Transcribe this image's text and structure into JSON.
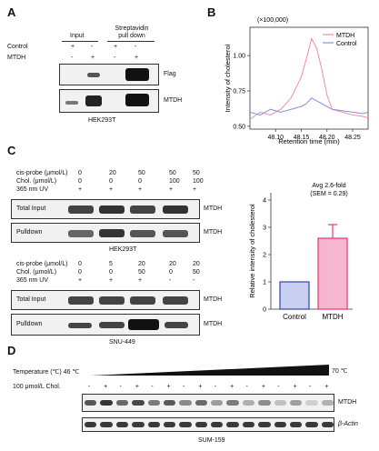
{
  "panels": {
    "A": "A",
    "B": "B",
    "C": "C",
    "D": "D"
  },
  "panelA": {
    "col_headers": {
      "input": "Input",
      "pulldown": "Streptavidin\npull down"
    },
    "row_labels": {
      "control": "Control",
      "mtdh": "MTDH"
    },
    "control_signs": [
      "+",
      "-",
      "+",
      "-"
    ],
    "mtdh_signs": [
      "-",
      "+",
      "-",
      "+"
    ],
    "blot_labels": {
      "top": "Flag",
      "bottom": "MTDH"
    },
    "cell_line": "HEK293T"
  },
  "panelB": {
    "multiplier": "(×100,000)",
    "legend": {
      "mtdh": "MTDH",
      "control": "Control"
    },
    "colors": {
      "mtdh": "#f08bb0",
      "control": "#8b8fd6"
    },
    "chart_data": {
      "type": "line",
      "xlabel": "Retention time (min)",
      "ylabel": "Intensity of cholesterol",
      "xlim": [
        48.05,
        48.28
      ],
      "ylim": [
        0.48,
        1.2
      ],
      "xticks": [
        "48.10",
        "48.15",
        "48.20",
        "48.25"
      ],
      "yticks": [
        "0.50",
        "0.75",
        "1.00"
      ],
      "series": [
        {
          "name": "MTDH",
          "x": [
            48.05,
            48.07,
            48.09,
            48.11,
            48.13,
            48.15,
            48.16,
            48.17,
            48.18,
            48.19,
            48.2,
            48.21,
            48.23,
            48.25,
            48.27,
            48.28
          ],
          "y": [
            0.55,
            0.6,
            0.58,
            0.62,
            0.7,
            0.85,
            0.98,
            1.12,
            1.05,
            0.9,
            0.72,
            0.62,
            0.6,
            0.58,
            0.57,
            0.56
          ]
        },
        {
          "name": "Control",
          "x": [
            48.05,
            48.07,
            48.09,
            48.11,
            48.13,
            48.15,
            48.16,
            48.17,
            48.18,
            48.19,
            48.2,
            48.21,
            48.23,
            48.25,
            48.27,
            48.28
          ],
          "y": [
            0.6,
            0.58,
            0.62,
            0.6,
            0.62,
            0.64,
            0.66,
            0.7,
            0.68,
            0.66,
            0.64,
            0.62,
            0.61,
            0.6,
            0.59,
            0.6
          ]
        }
      ]
    }
  },
  "panelC": {
    "top": {
      "row_labels": [
        "cis-probe (μmol/L)",
        "Chol. (μmol/L)",
        "365 nm UV"
      ],
      "rows": [
        [
          "0",
          "20",
          "50",
          "50",
          "50"
        ],
        [
          "0",
          "0",
          "0",
          "100",
          "100"
        ],
        [
          "+",
          "+",
          "+",
          "+",
          "+"
        ]
      ],
      "blot_left": [
        "Total Input",
        "Pulldown"
      ],
      "blot_right": [
        "MTDH",
        "MTDH"
      ],
      "cell_line": "HEK293T"
    },
    "bottom": {
      "row_labels": [
        "cis-probe (μmol/L)",
        "Chol. (μmol/L)",
        "365 nm UV"
      ],
      "rows": [
        [
          "0",
          "5",
          "20",
          "20",
          "20"
        ],
        [
          "0",
          "0",
          "50",
          "0",
          "50"
        ],
        [
          "+",
          "+",
          "+",
          "-",
          "-"
        ]
      ],
      "blot_left": [
        "Total Input",
        "Pulldown"
      ],
      "blot_right": [
        "MTDH",
        "MTDH"
      ],
      "cell_line": "SNU-449"
    },
    "bar_annotation": "Avg 2.6-fold\n(SEM = 0.29)",
    "colors": {
      "control": "#3344aa",
      "mtdh": "#e8357a"
    },
    "chart_data": {
      "type": "bar",
      "categories": [
        "Control",
        "MTDH"
      ],
      "values": [
        1.0,
        2.6
      ],
      "errors": [
        0,
        0.5
      ],
      "ylabel": "Relative intensity of cholesterol",
      "ylim": [
        0,
        4
      ],
      "yticks": [
        "0",
        "1",
        "2",
        "3",
        "4"
      ]
    }
  },
  "panelD": {
    "temperature_label": "Temperature (℃) 46 ℃",
    "temp_end": "70 ℃",
    "chol_label": "100 μmol/L  Chol.",
    "chol_signs": [
      "-",
      "+",
      "-",
      "+",
      "-",
      "+",
      "-",
      "+",
      "-",
      "+",
      "-",
      "+",
      "-",
      "+",
      "-",
      "+"
    ],
    "blot_labels": [
      "MTDH",
      "β-Actin"
    ],
    "cell_line": "SUM-159"
  }
}
